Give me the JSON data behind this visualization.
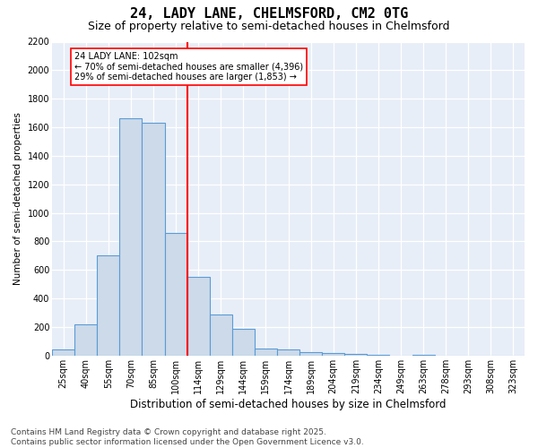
{
  "title": "24, LADY LANE, CHELMSFORD, CM2 0TG",
  "subtitle": "Size of property relative to semi-detached houses in Chelmsford",
  "xlabel": "Distribution of semi-detached houses by size in Chelmsford",
  "ylabel": "Number of semi-detached properties",
  "categories": [
    "25sqm",
    "40sqm",
    "55sqm",
    "70sqm",
    "85sqm",
    "100sqm",
    "114sqm",
    "129sqm",
    "144sqm",
    "159sqm",
    "174sqm",
    "189sqm",
    "204sqm",
    "219sqm",
    "234sqm",
    "249sqm",
    "263sqm",
    "278sqm",
    "293sqm",
    "308sqm",
    "323sqm"
  ],
  "values": [
    40,
    220,
    700,
    1660,
    1630,
    860,
    550,
    290,
    185,
    50,
    40,
    25,
    15,
    10,
    5,
    0,
    5,
    0,
    0,
    0,
    0
  ],
  "bar_color": "#ccdaea",
  "bar_edge_color": "#5b9bd5",
  "vline_color": "red",
  "vline_x": 5.5,
  "annotation_line1": "24 LADY LANE: 102sqm",
  "annotation_line2": "← 70% of semi-detached houses are smaller (4,396)",
  "annotation_line3": "29% of semi-detached houses are larger (1,853) →",
  "ylim_max": 2200,
  "yticks": [
    0,
    200,
    400,
    600,
    800,
    1000,
    1200,
    1400,
    1600,
    1800,
    2000,
    2200
  ],
  "bg_color": "#e8eef8",
  "grid_color": "#ffffff",
  "footer": "Contains HM Land Registry data © Crown copyright and database right 2025.\nContains public sector information licensed under the Open Government Licence v3.0.",
  "title_fontsize": 11,
  "subtitle_fontsize": 9,
  "xlabel_fontsize": 8.5,
  "ylabel_fontsize": 7.5,
  "tick_fontsize": 7,
  "footer_fontsize": 6.5,
  "annot_fontsize": 7
}
